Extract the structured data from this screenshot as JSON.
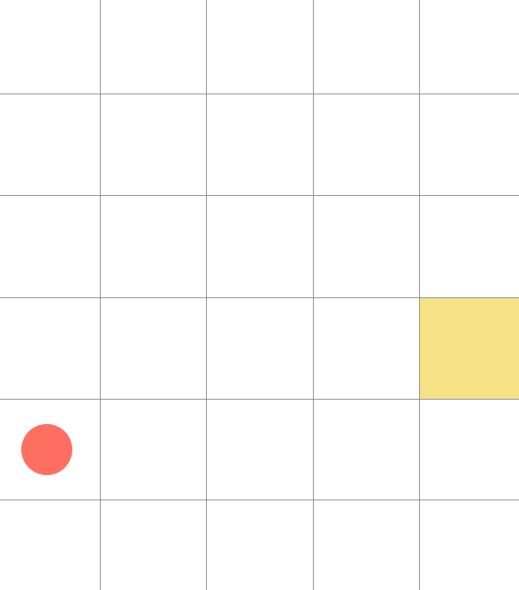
{
  "board": {
    "columns": 5,
    "rows": 6,
    "grid_line_color": "#8a8a8a",
    "background_color": "#ffffff"
  },
  "target": {
    "shape": "square",
    "color": "#f4e285",
    "cell": {
      "row": 3,
      "col": 4
    }
  },
  "player": {
    "shape": "circle",
    "color": "#ff6f61",
    "cell": {
      "row": 4,
      "col": 0
    }
  }
}
